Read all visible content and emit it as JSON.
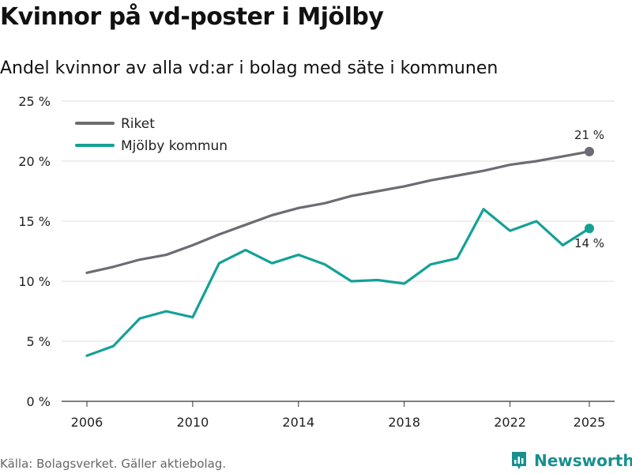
{
  "title": "Kvinnor på vd-poster i Mjölby",
  "subtitle": "Andel kvinnor av alla vd:ar i bolag med säte i kommunen",
  "source": "Källa: Bolagsverket. Gäller aktiebolag.",
  "brand": "Newsworthy",
  "colors": {
    "riket": "#6d6b73",
    "mjolby": "#14a196",
    "grid": "#dddddd",
    "brand": "#1a8f8f"
  },
  "chart_data": {
    "type": "line",
    "x": [
      2006,
      2007,
      2008,
      2009,
      2010,
      2011,
      2012,
      2013,
      2014,
      2015,
      2016,
      2017,
      2018,
      2019,
      2020,
      2021,
      2022,
      2023,
      2024,
      2025
    ],
    "xlim": [
      2006,
      2025
    ],
    "ylim": [
      0,
      25
    ],
    "xticks": [
      2006,
      2010,
      2014,
      2018,
      2022,
      2025
    ],
    "yticks": [
      0,
      5,
      10,
      15,
      20,
      25
    ],
    "ytick_labels": [
      "0 %",
      "5 %",
      "10 %",
      "15 %",
      "20 %",
      "25 %"
    ],
    "legend_position": "top-left",
    "series": [
      {
        "name": "Riket",
        "color": "#6d6b73",
        "end_label": "21 %",
        "values": [
          10.7,
          11.2,
          11.8,
          12.2,
          13.0,
          13.9,
          14.7,
          15.5,
          16.1,
          16.5,
          17.1,
          17.5,
          17.9,
          18.4,
          18.8,
          19.2,
          19.7,
          20.0,
          20.4,
          20.8
        ]
      },
      {
        "name": "Mjölby kommun",
        "color": "#14a196",
        "end_label": "14 %",
        "values": [
          3.8,
          4.6,
          6.9,
          7.5,
          7.0,
          11.5,
          12.6,
          11.5,
          12.2,
          11.4,
          10.0,
          10.1,
          9.8,
          11.4,
          11.9,
          16.0,
          14.2,
          15.0,
          13.0,
          14.4
        ]
      }
    ]
  }
}
